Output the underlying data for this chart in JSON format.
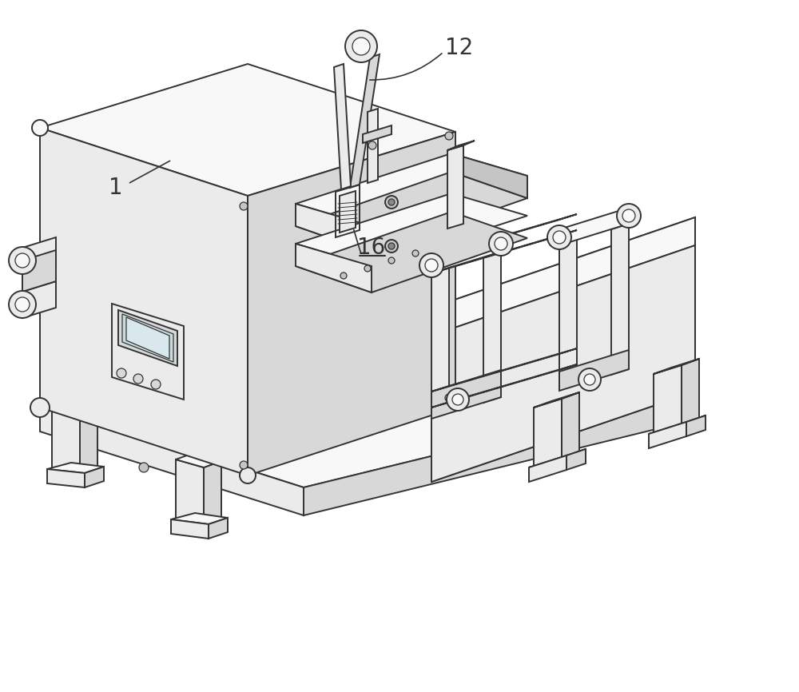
{
  "bg": "#ffffff",
  "lc": "#333333",
  "fl": "#f8f8f8",
  "fm": "#ebebeb",
  "fd": "#d8d8d8",
  "fdk": "#c5c5c5",
  "lw": 1.4,
  "lwt": 0.9,
  "lwk": 2.0,
  "label_1": "1",
  "label_12": "12",
  "label_16": "16",
  "fs": 20
}
